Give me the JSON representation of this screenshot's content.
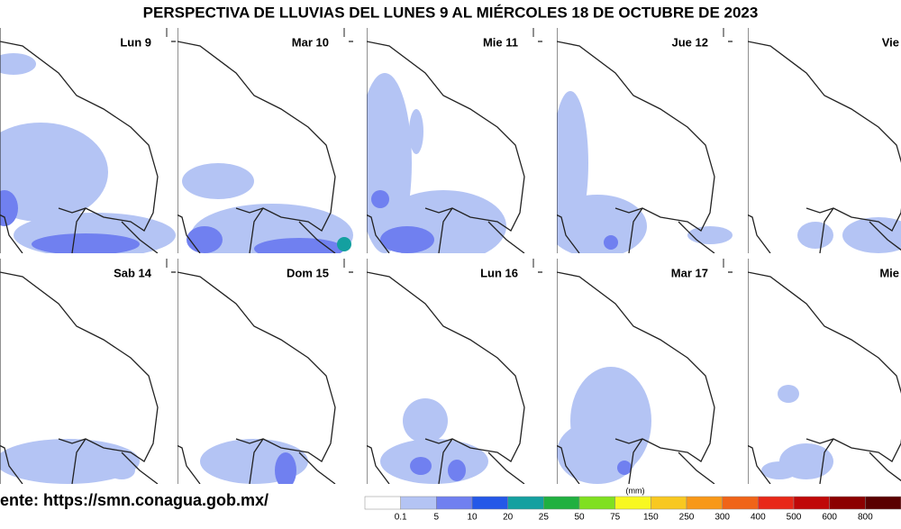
{
  "header": {
    "title": "PERSPECTIVA DE LLUVIAS DEL LUNES 9 AL MIÉRCOLES 18 DE OCTUBRE DE 2023"
  },
  "panels": [
    {
      "label": "Lun 9"
    },
    {
      "label": "Mar 10"
    },
    {
      "label": "Mie 11"
    },
    {
      "label": "Jue 12"
    },
    {
      "label": "Vie"
    },
    {
      "label": "Sab 14"
    },
    {
      "label": "Dom 15"
    },
    {
      "label": "Lun 16"
    },
    {
      "label": "Mar 17"
    },
    {
      "label": "Mie"
    }
  ],
  "source": "ente: https://smn.conagua.gob.mx/",
  "legend": {
    "unit": "(mm)",
    "colors": [
      "#ffffff",
      "#b4c4f4",
      "#7080f0",
      "#2458e8",
      "#14a0a0",
      "#20b040",
      "#80e020",
      "#f8f820",
      "#f8c820",
      "#f89818",
      "#f06418",
      "#e82818",
      "#c00808",
      "#8c0000",
      "#5a0000"
    ],
    "ticks": [
      "0.1",
      "5",
      "10",
      "20",
      "25",
      "50",
      "75",
      "150",
      "250",
      "300",
      "400",
      "500",
      "600",
      "800"
    ]
  }
}
